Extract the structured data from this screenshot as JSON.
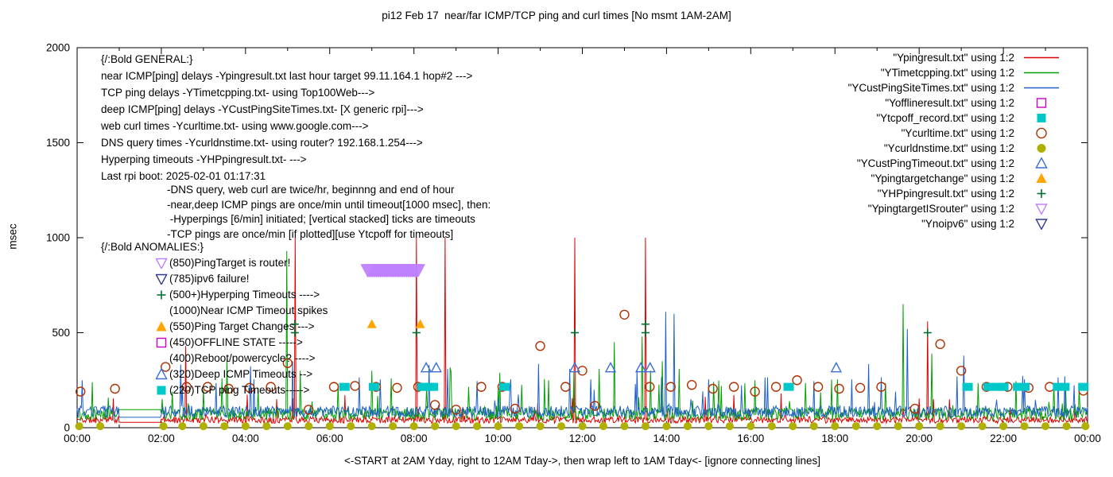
{
  "title": "pi12 Feb 17  near/far ICMP/TCP ping and curl times [No msmt 1AM-2AM]",
  "ylabel": "msec",
  "xlabel": "<-START at 2AM Yday, right to 12AM Tday->, then wrap left to 1AM Tday<- [ignore connecting lines]",
  "chart_data": {
    "type": "line",
    "xlim": [
      0,
      24
    ],
    "ylim": [
      0,
      2000
    ],
    "grid": false,
    "legend_position": "top-right",
    "y_ticks": [
      0,
      500,
      1000,
      1500,
      2000
    ],
    "x_tick_hours": [
      0,
      2,
      4,
      6,
      8,
      10,
      12,
      14,
      16,
      18,
      20,
      22,
      24
    ],
    "x_tick_labels": [
      "00:00",
      "02:00",
      "04:00",
      "06:00",
      "08:00",
      "10:00",
      "12:00",
      "14:00",
      "16:00",
      "18:00",
      "20:00",
      "22:00",
      "00:00"
    ],
    "no_measurement_gap_hours": [
      1,
      2
    ],
    "legend": [
      {
        "label": "\"Ypingresult.txt\" using 1:2",
        "type": "line",
        "color": "#e00000"
      },
      {
        "label": "\"YTimetcpping.txt\" using 1:2",
        "type": "line",
        "color": "#00a000"
      },
      {
        "label": "\"YCustPingSiteTimes.txt\" using 1:2",
        "type": "line",
        "color": "#2060c8"
      },
      {
        "label": "\"Yofflineresult.txt\" using 1:2",
        "type": "square-open",
        "color": "#c800c8"
      },
      {
        "label": "\"Ytcpoff_record.txt\" using 1:2",
        "type": "square-filled",
        "color": "#00c8c8"
      },
      {
        "label": "\"Ycurltime.txt\" using 1:2",
        "type": "circle-open",
        "color": "#b03000"
      },
      {
        "label": "\"Ycurldnstime.txt\" using 1:2",
        "type": "circle-filled",
        "color": "#b0b000"
      },
      {
        "label": "\"YCustPingTimeout.txt\" using 1:2",
        "type": "triangle-up-open",
        "color": "#3a6fd8"
      },
      {
        "label": "\"Ypingtargetchange\" using 1:2",
        "type": "triangle-up-filled",
        "color": "#ffa500"
      },
      {
        "label": "\"YHPpingresult.txt\" using 1:2",
        "type": "plus",
        "color": "#007030"
      },
      {
        "label": "\"YpingtargetISrouter\" using 1:2",
        "type": "triangle-down-open",
        "color": "#bf80ff"
      },
      {
        "label": "\"Ynoipv6\" using 1:2",
        "type": "triangle-down-open",
        "color": "#303a90"
      }
    ],
    "line_series": [
      {
        "name": "near-icmp-ping-msec",
        "color": "#e00000",
        "baseline": 24,
        "jitter": 70,
        "gap_y": 28,
        "seed": 11,
        "spikes": [
          [
            2.58,
            430
          ],
          [
            5.17,
            1000
          ],
          [
            8.06,
            1000
          ],
          [
            8.74,
            1000
          ],
          [
            11.82,
            1000
          ],
          [
            13.5,
            1000
          ],
          [
            20.2,
            560
          ]
        ]
      },
      {
        "name": "tcp-ping-msec",
        "color": "#00a000",
        "baseline": 40,
        "jitter": 130,
        "gap_y": 95,
        "seed": 22,
        "spikes": [
          [
            0.35,
            240
          ],
          [
            2.25,
            190
          ],
          [
            3.0,
            200
          ],
          [
            3.55,
            360
          ],
          [
            4.3,
            210
          ],
          [
            4.98,
            930
          ],
          [
            5.3,
            300
          ],
          [
            6.2,
            230
          ],
          [
            7.0,
            300
          ],
          [
            7.45,
            260
          ],
          [
            8.3,
            210
          ],
          [
            9.3,
            215
          ],
          [
            10.0,
            200
          ],
          [
            10.55,
            225
          ],
          [
            11.2,
            250
          ],
          [
            12.4,
            310
          ],
          [
            12.75,
            450
          ],
          [
            13.42,
            480
          ],
          [
            13.62,
            300
          ],
          [
            13.9,
            350
          ],
          [
            14.3,
            310
          ],
          [
            15.3,
            220
          ],
          [
            16.1,
            250
          ],
          [
            17.3,
            235
          ],
          [
            18.05,
            255
          ],
          [
            19.2,
            235
          ],
          [
            19.62,
            650
          ],
          [
            20.3,
            390
          ],
          [
            21.4,
            235
          ],
          [
            22.3,
            245
          ],
          [
            23.2,
            235
          ],
          [
            23.8,
            210
          ]
        ]
      },
      {
        "name": "deep-icmp-ping-msec",
        "color": "#2060c8",
        "baseline": 55,
        "jitter": 120,
        "gap_y": 55,
        "seed": 33,
        "spikes": [
          [
            0.12,
            250
          ],
          [
            2.5,
            205
          ],
          [
            3.3,
            235
          ],
          [
            4.2,
            255
          ],
          [
            5.12,
            350
          ],
          [
            6.7,
            265
          ],
          [
            7.2,
            255
          ],
          [
            8.35,
            330
          ],
          [
            9.5,
            245
          ],
          [
            10.3,
            255
          ],
          [
            11.7,
            310
          ],
          [
            12.2,
            255
          ],
          [
            13.3,
            305
          ],
          [
            13.97,
            610
          ],
          [
            14.17,
            600
          ],
          [
            15.0,
            255
          ],
          [
            16.4,
            265
          ],
          [
            17.5,
            245
          ],
          [
            18.4,
            255
          ],
          [
            19.1,
            265
          ],
          [
            19.72,
            520
          ],
          [
            20.9,
            270
          ],
          [
            21.05,
            380
          ],
          [
            22.5,
            255
          ],
          [
            23.3,
            265
          ]
        ]
      }
    ],
    "marker_series": [
      {
        "name": "web-curl-times",
        "marker": "circle-open",
        "color": "#b03000",
        "points": [
          [
            0.08,
            190
          ],
          [
            0.9,
            205
          ],
          [
            2.1,
            320
          ],
          [
            2.6,
            215
          ],
          [
            3.1,
            215
          ],
          [
            3.6,
            205
          ],
          [
            4.1,
            210
          ],
          [
            4.6,
            215
          ],
          [
            5.0,
            340
          ],
          [
            5.5,
            95
          ],
          [
            6.1,
            215
          ],
          [
            6.6,
            220
          ],
          [
            7.1,
            215
          ],
          [
            7.6,
            210
          ],
          [
            8.1,
            215
          ],
          [
            8.5,
            120
          ],
          [
            9.0,
            95
          ],
          [
            9.6,
            215
          ],
          [
            10.1,
            215
          ],
          [
            10.4,
            100
          ],
          [
            11.0,
            430
          ],
          [
            11.6,
            215
          ],
          [
            12.0,
            300
          ],
          [
            12.3,
            115
          ],
          [
            13.0,
            595
          ],
          [
            13.6,
            215
          ],
          [
            14.1,
            215
          ],
          [
            14.6,
            225
          ],
          [
            15.1,
            205
          ],
          [
            15.6,
            215
          ],
          [
            16.1,
            190
          ],
          [
            16.6,
            215
          ],
          [
            17.1,
            250
          ],
          [
            17.6,
            215
          ],
          [
            18.1,
            205
          ],
          [
            18.6,
            210
          ],
          [
            19.1,
            215
          ],
          [
            19.9,
            100
          ],
          [
            20.5,
            440
          ],
          [
            21.0,
            300
          ],
          [
            21.6,
            215
          ],
          [
            22.1,
            215
          ],
          [
            22.6,
            210
          ],
          [
            23.1,
            215
          ],
          [
            23.9,
            195
          ]
        ]
      },
      {
        "name": "dns-query-times",
        "marker": "circle-filled",
        "color": "#b0b000",
        "y": 8,
        "x": [
          0.05,
          0.55,
          2.05,
          2.5,
          3.0,
          3.5,
          4.0,
          4.5,
          5.0,
          5.5,
          6.0,
          6.5,
          7.0,
          7.5,
          8.0,
          8.5,
          9.0,
          9.5,
          10.0,
          10.5,
          11.0,
          11.5,
          12.0,
          12.5,
          13.0,
          13.5,
          14.0,
          14.5,
          15.0,
          15.5,
          16.0,
          16.5,
          17.0,
          17.5,
          18.0,
          18.5,
          19.0,
          19.5,
          20.0,
          20.5,
          21.0,
          21.5,
          22.0,
          22.5,
          23.0,
          23.5,
          23.95
        ]
      },
      {
        "name": "tcp-ping-timeouts",
        "marker": "square-filled",
        "color": "#00c8c8",
        "y": 215,
        "w": 13,
        "h": 10,
        "x": [
          6.35,
          7.05,
          8.2,
          8.3,
          8.4,
          8.45,
          10.15,
          16.9,
          21.15,
          21.65,
          21.85,
          22.0,
          22.35,
          22.5,
          23.3,
          23.45,
          23.9
        ]
      },
      {
        "name": "deep-icmp-timeouts",
        "marker": "triangle-up-open",
        "color": "#3a6fd8",
        "y": 315,
        "x": [
          8.29,
          8.53,
          11.82,
          12.67,
          13.39,
          13.61,
          18.03
        ]
      },
      {
        "name": "ping-target-changes",
        "marker": "triangle-up-filled",
        "color": "#ffa500",
        "y": 545,
        "x": [
          7.0,
          8.15
        ]
      },
      {
        "name": "hyperping-timeouts",
        "marker": "plus",
        "color": "#007030",
        "points": [
          [
            5.17,
            500
          ],
          [
            5.17,
            545
          ],
          [
            8.06,
            500
          ],
          [
            11.82,
            500
          ],
          [
            13.5,
            500
          ],
          [
            13.5,
            545
          ],
          [
            20.2,
            500
          ]
        ]
      },
      {
        "name": "pingtarget-is-router",
        "marker": "triangle-down-open",
        "color": "#bf80ff",
        "band": {
          "from": 6.9,
          "to": 8.12,
          "step": 0.03,
          "y": 830
        }
      }
    ]
  },
  "annotations": {
    "general": {
      "lines": [
        "{/:Bold GENERAL:}",
        "near ICMP[ping] delays -Ypingresult.txt last hour target 99.11.164.1 hop#2 --->",
        "TCP ping delays -YTimetcpping.txt- using Top100Web--->",
        "deep ICMP[ping] delays -YCustPingSiteTimes.txt- [X generic rpi]--->",
        "web curl times -Ycurltime.txt- using www.google.com--->",
        "DNS query times -Ycurldnstime.txt- using router? 192.168.1.254--->",
        "Hyperping timeouts -YHPpingresult.txt- --->",
        "Last rpi boot: 2025-02-01 01:17:31"
      ],
      "notes": [
        "-DNS query, web curl are twice/hr, beginnng and end of hour",
        "-near,deep ICMP pings are once/min until timeout[1000 msec], then:",
        " -Hyperpings [6/min] initiated; [vertical stacked] ticks are timeouts",
        "-TCP pings are once/min [if plotted][use Ytcpoff for timeouts]"
      ]
    },
    "anomalies": {
      "header": "{/:Bold ANOMALIES:}",
      "items": [
        {
          "marker": "triangle-down-open",
          "color": "#bf80ff",
          "text": "(850)PingTarget is router!"
        },
        {
          "marker": "triangle-down-open",
          "color": "#303a90",
          "text": "(785)ipv6 failure!"
        },
        {
          "marker": "plus",
          "color": "#007030",
          "text": "(500+)Hyperping Timeouts ---->"
        },
        {
          "marker": null,
          "color": null,
          "text": "(1000)Near ICMP Timeout spikes"
        },
        {
          "marker": "triangle-up-filled",
          "color": "#ffa500",
          "text": "(550)Ping Target Changes --->"
        },
        {
          "marker": "square-open",
          "color": "#c800c8",
          "text": "(450)OFFLINE STATE ----->"
        },
        {
          "marker": null,
          "color": null,
          "text": "(400)Reboot/powercycle? ---->"
        },
        {
          "marker": "triangle-up-open",
          "color": "#3a6fd8",
          "text": "(320)Deep ICMP Timeouts -->"
        },
        {
          "marker": "square-filled",
          "color": "#00c8c8",
          "text": "(220)TCP ping Timeouts----->"
        }
      ]
    }
  }
}
